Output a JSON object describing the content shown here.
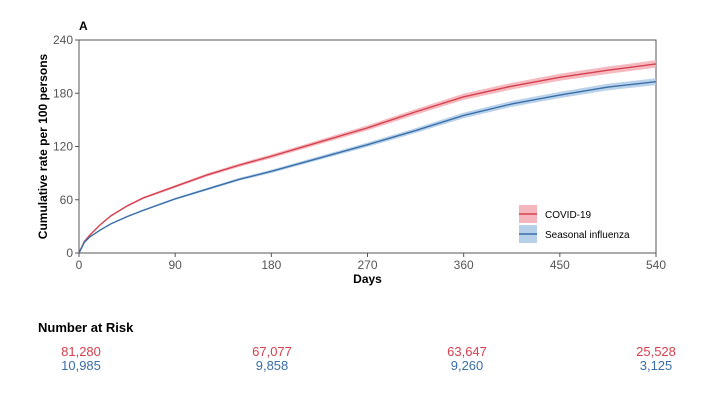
{
  "chart_data": {
    "type": "line",
    "panel_label": "A",
    "xlabel": "Days",
    "ylabel": "Cumulative rate per 100 persons",
    "xlim": [
      0,
      540
    ],
    "ylim": [
      0,
      240
    ],
    "xticks": [
      0,
      90,
      180,
      270,
      360,
      450,
      540
    ],
    "yticks": [
      0,
      60,
      120,
      180,
      240
    ],
    "grid": false,
    "legend_position": "bottom-right",
    "x": [
      0,
      5,
      10,
      20,
      30,
      45,
      60,
      90,
      120,
      150,
      180,
      225,
      270,
      315,
      360,
      405,
      450,
      495,
      540
    ],
    "series": [
      {
        "name": "COVID-19",
        "color": "#d6404e",
        "band": "#f2a9b0",
        "values": [
          0,
          13,
          20,
          32,
          42,
          53,
          62,
          75,
          88,
          99,
          109,
          125,
          141,
          159,
          176,
          188,
          198,
          206,
          213
        ]
      },
      {
        "name": "Seasonal influenza",
        "color": "#3a6ea8",
        "band": "#a9c8e6",
        "values": [
          0,
          12,
          18,
          26,
          33,
          41,
          48,
          61,
          72,
          83,
          92,
          107,
          122,
          138,
          155,
          168,
          178,
          187,
          193
        ]
      }
    ]
  },
  "risk_table": {
    "title": "Number at Risk",
    "covid": [
      "81,280",
      "67,077",
      "63,647",
      "25,528"
    ],
    "flu": [
      "10,985",
      "9,858",
      "9,260",
      "3,125"
    ]
  }
}
